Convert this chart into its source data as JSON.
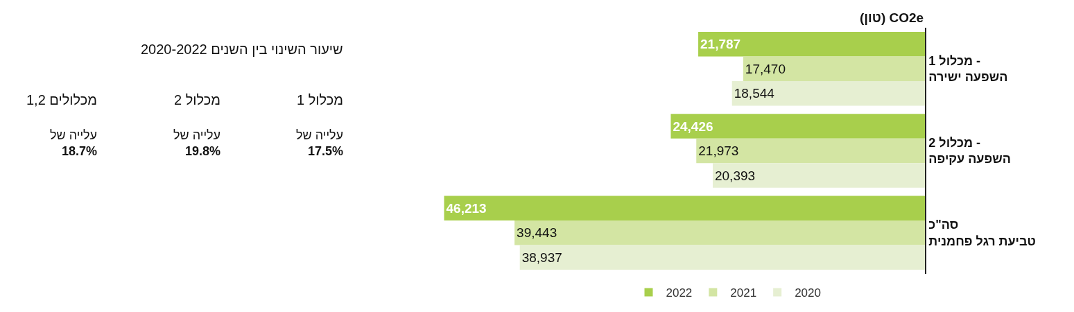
{
  "chart_data": [
    {
      "type": "bar",
      "orientation": "horizontal",
      "title": "(טון) CO2e",
      "categories": [
        "מכלול 1 -\nהשפעה ישירה",
        "מכלול 2 -\nהשפעה עקיפה",
        "סה\"כ\nטביעת רגל פחמנית"
      ],
      "series": [
        {
          "name": "2022",
          "color": "#a8cf4c",
          "values": [
            21787,
            24426,
            46213
          ],
          "value_labels": [
            "21,787",
            "24,426",
            "46,213"
          ]
        },
        {
          "name": "2021",
          "color": "#d3e5a3",
          "values": [
            17470,
            21973,
            39443
          ],
          "value_labels": [
            "17,470",
            "21,973",
            "39,443"
          ]
        },
        {
          "name": "2020",
          "color": "#e6efd2",
          "values": [
            18544,
            20393,
            38937
          ],
          "value_labels": [
            "18,544",
            "20,393",
            "38,937"
          ]
        }
      ],
      "legend": "bottom"
    },
    {
      "type": "other",
      "title": "שיעור השינוי בין השנים 2020-2022",
      "categories": [
        "מכלול 1",
        "מכלול 2",
        "מכלולים 1,2"
      ],
      "annotations": [
        "עלייה של\n17.5%",
        "עלייה של\n19.8%",
        "עלייה של\n18.7%"
      ]
    }
  ]
}
